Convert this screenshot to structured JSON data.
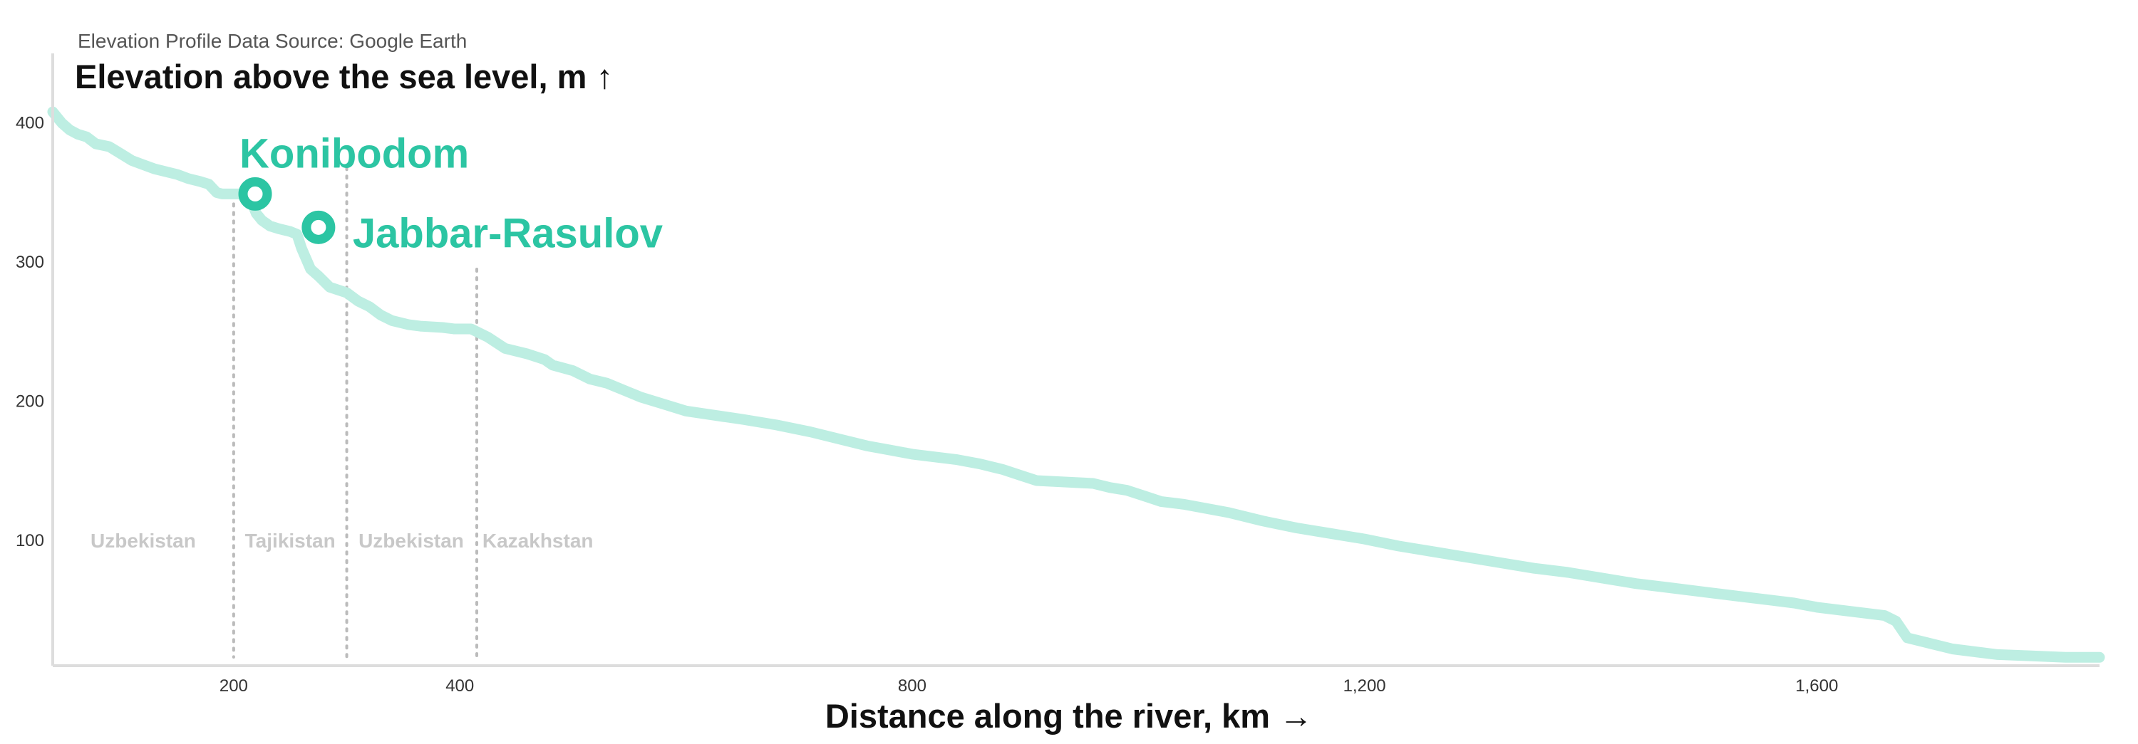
{
  "source_note": "Elevation Profile Data Source: Google Earth",
  "colors": {
    "line": "#bdeee2",
    "marker": "#2cc5a3",
    "axis": "#dddddd",
    "divider": "#bbbbbb",
    "region_text": "#c8c8c8"
  },
  "chart_data": {
    "type": "line",
    "title": "",
    "ylabel": "Elevation above the sea level, m ↑",
    "xlabel": "Distance along the river, km →",
    "xlim": [
      40,
      1850
    ],
    "ylim": [
      10,
      450
    ],
    "x_ticks": [
      200,
      400,
      800,
      1200,
      1600
    ],
    "x_tick_labels": [
      "200",
      "400",
      "800",
      "1,200",
      "1,600"
    ],
    "y_ticks": [
      100,
      200,
      300,
      400
    ],
    "y_tick_labels": [
      "100",
      "200",
      "300",
      "400"
    ],
    "grid": false,
    "series": [
      {
        "x": [
          40,
          48,
          55,
          62,
          70,
          78,
          90,
          100,
          110,
          120,
          130,
          140,
          150,
          160,
          170,
          178,
          185,
          190,
          200,
          210,
          215,
          220,
          225,
          232,
          240,
          250,
          256,
          260,
          268,
          275,
          285,
          300,
          310,
          320,
          330,
          340,
          355,
          365,
          385,
          395,
          410,
          425,
          440,
          460,
          475,
          482,
          500,
          515,
          530,
          545,
          560,
          580,
          600,
          625,
          650,
          680,
          710,
          740,
          760,
          780,
          800,
          820,
          840,
          860,
          880,
          895,
          910,
          935,
          960,
          975,
          990,
          1005,
          1020,
          1040,
          1060,
          1080,
          1110,
          1140,
          1170,
          1200,
          1230,
          1260,
          1290,
          1320,
          1350,
          1380,
          1410,
          1440,
          1470,
          1500,
          1530,
          1560,
          1580,
          1600,
          1620,
          1640,
          1660,
          1670,
          1680,
          1700,
          1720,
          1740,
          1760,
          1790,
          1820,
          1850
        ],
        "y": [
          408,
          400,
          395,
          392,
          390,
          385,
          383,
          378,
          373,
          370,
          367,
          365,
          363,
          360,
          358,
          356,
          350,
          349,
          349,
          349,
          345,
          335,
          330,
          326,
          324,
          322,
          320,
          310,
          295,
          290,
          282,
          278,
          272,
          268,
          262,
          258,
          255,
          254,
          253,
          252,
          252,
          246,
          238,
          234,
          230,
          226,
          222,
          216,
          213,
          208,
          203,
          198,
          193,
          190,
          187,
          183,
          178,
          172,
          168,
          165,
          162,
          160,
          158,
          155,
          151,
          147,
          143,
          142,
          141,
          138,
          136,
          132,
          128,
          126,
          123,
          120,
          114,
          109,
          105,
          101,
          96,
          92,
          88,
          84,
          80,
          77,
          73,
          69,
          66,
          63,
          60,
          57,
          55,
          52,
          50,
          48,
          46,
          42,
          30,
          26,
          22,
          20,
          18,
          17,
          16,
          16
        ]
      }
    ],
    "markers": [
      {
        "label": "Konibodom",
        "x": 219,
        "y": 349
      },
      {
        "label": "Jabbar-Rasulov",
        "x": 275,
        "y": 325
      }
    ],
    "dividers": [
      {
        "x": 200,
        "y_top": 348
      },
      {
        "x": 300,
        "y_top": 368
      },
      {
        "x": 415,
        "y_top": 295
      }
    ],
    "regions": [
      {
        "label": "Uzbekistan",
        "x": 120
      },
      {
        "label": "Tajikistan",
        "x": 250
      },
      {
        "label": "Uzbekistan",
        "x": 357
      },
      {
        "label": "Kazakhstan",
        "x": 469
      }
    ],
    "region_label_y": 95
  }
}
